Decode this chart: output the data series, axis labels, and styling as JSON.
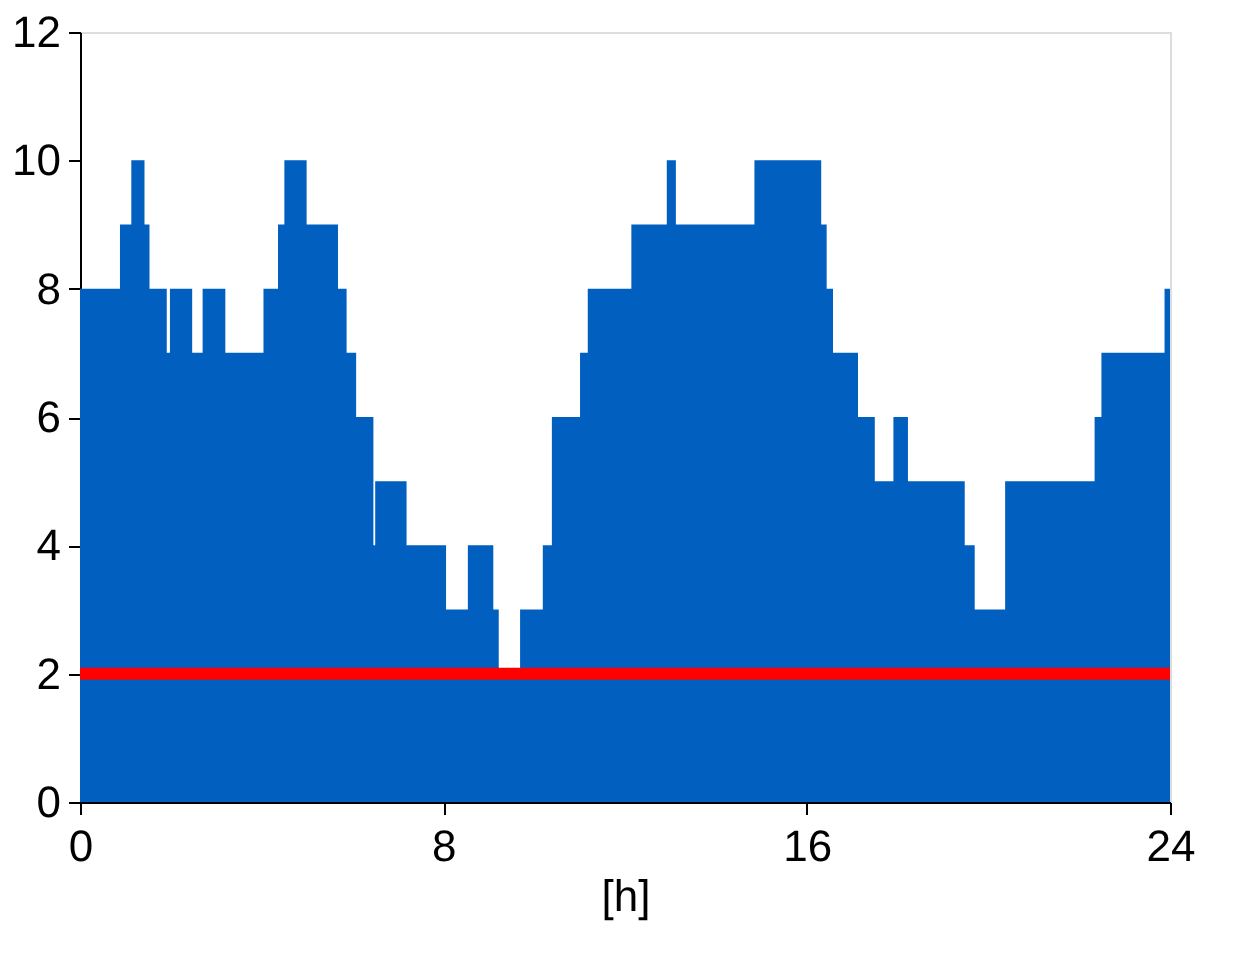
{
  "chart_data": {
    "type": "step",
    "xlabel": "[h]",
    "x": [
      0,
      0.88,
      1.13,
      1.42,
      1.53,
      1.91,
      1.98,
      2.47,
      2.7,
      3.2,
      4.04,
      4.36,
      4.5,
      4.99,
      5.68,
      5.87,
      6.08,
      6.46,
      6.5,
      7.19,
      8.06,
      8.54,
      9.1,
      9.22,
      9.69,
      10.19,
      10.39,
      11.01,
      11.18,
      12.14,
      12.92,
      13.12,
      14.85,
      16.32,
      16.44,
      16.58,
      17.13,
      17.5,
      17.91,
      18.23,
      19.48,
      19.7,
      20.37,
      22.34,
      22.49,
      23.88,
      24
    ],
    "series": [
      {
        "type": "area",
        "color": "#005fbf",
        "values": [
          8,
          9,
          10,
          9,
          8,
          7,
          8,
          7,
          8,
          7,
          8,
          9,
          10,
          9,
          8,
          7,
          6,
          4,
          5,
          4,
          3,
          4,
          3,
          2,
          3,
          4,
          6,
          7,
          8,
          9,
          10,
          9,
          10,
          9,
          8,
          7,
          6,
          5,
          6,
          5,
          4,
          3,
          5,
          6,
          7,
          8,
          8
        ]
      }
    ],
    "ref_lines": [
      {
        "axis": "y",
        "value": 2,
        "color": "#ff0000"
      }
    ],
    "xlim": [
      0,
      24
    ],
    "xticks": [
      0,
      8,
      16,
      24
    ],
    "ylim": [
      0,
      12
    ],
    "yticks": [
      0,
      2,
      4,
      6,
      8,
      10,
      12
    ],
    "grid": false
  }
}
